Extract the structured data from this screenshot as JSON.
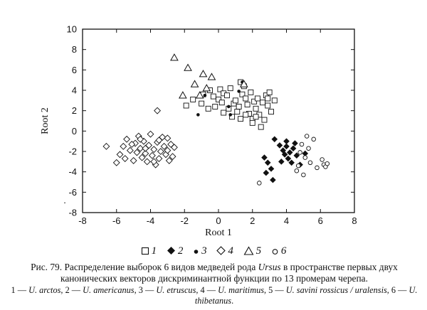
{
  "chart_data": {
    "type": "scatter",
    "title": "",
    "xlabel": "Root 1",
    "ylabel": "Root 2",
    "xlim": [
      -8,
      8
    ],
    "ylim": [
      -8,
      10
    ],
    "x_ticks": [
      -8,
      -6,
      -4,
      -2,
      0,
      2,
      4,
      6,
      8
    ],
    "y_ticks": [
      -8,
      -6,
      -4,
      -2,
      0,
      2,
      4,
      6,
      8,
      10
    ],
    "grid": false,
    "legend_position": "bottom",
    "series": [
      {
        "name": "1",
        "marker": "open-square",
        "points": [
          [
            -1.9,
            2.5
          ],
          [
            -1.5,
            3.1
          ],
          [
            -1.0,
            2.7
          ],
          [
            -0.9,
            3.6
          ],
          [
            -0.5,
            4.0
          ],
          [
            -0.6,
            2.2
          ],
          [
            -0.2,
            2.4
          ],
          [
            0.0,
            3.1
          ],
          [
            0.1,
            4.1
          ],
          [
            0.3,
            3.7
          ],
          [
            0.5,
            3.5
          ],
          [
            0.7,
            4.2
          ],
          [
            0.9,
            2.7
          ],
          [
            0.6,
            2.2
          ],
          [
            1.0,
            3.0
          ],
          [
            1.1,
            1.9
          ],
          [
            1.2,
            2.4
          ],
          [
            1.4,
            3.6
          ],
          [
            1.5,
            4.4
          ],
          [
            1.6,
            3.2
          ],
          [
            1.7,
            2.6
          ],
          [
            1.8,
            1.7
          ],
          [
            1.9,
            3.8
          ],
          [
            2.0,
            1.2
          ],
          [
            2.1,
            2.9
          ],
          [
            2.2,
            2.2
          ],
          [
            2.3,
            3.2
          ],
          [
            2.4,
            1.6
          ],
          [
            2.6,
            2.8
          ],
          [
            2.7,
            1.1
          ],
          [
            2.8,
            3.5
          ],
          [
            2.9,
            2.5
          ],
          [
            3.1,
            1.9
          ],
          [
            3.0,
            3.8
          ],
          [
            3.3,
            3.0
          ],
          [
            0.3,
            1.8
          ],
          [
            0.8,
            1.4
          ],
          [
            1.3,
            1.2
          ],
          [
            -0.3,
            3.4
          ],
          [
            1.6,
            1.6
          ],
          [
            2.5,
            0.4
          ],
          [
            2.0,
            0.8
          ],
          [
            2.2,
            1.4
          ],
          [
            2.9,
            3.2
          ],
          [
            1.3,
            4.8
          ],
          [
            0.2,
            2.8
          ]
        ]
      },
      {
        "name": "2",
        "marker": "filled-diamond",
        "points": [
          [
            3.3,
            -0.8
          ],
          [
            3.6,
            -1.4
          ],
          [
            3.8,
            -1.9
          ],
          [
            4.0,
            -1.5
          ],
          [
            4.2,
            -2.1
          ],
          [
            4.4,
            -1.7
          ],
          [
            4.6,
            -2.4
          ],
          [
            4.1,
            -2.7
          ],
          [
            3.9,
            -2.3
          ],
          [
            3.7,
            -3.0
          ],
          [
            4.3,
            -3.1
          ],
          [
            4.5,
            -1.2
          ],
          [
            4.8,
            -3.3
          ],
          [
            5.1,
            -2.2
          ],
          [
            3.1,
            -3.7
          ],
          [
            3.2,
            -4.8
          ],
          [
            2.8,
            -4.1
          ],
          [
            2.7,
            -2.6
          ],
          [
            2.9,
            -3.1
          ],
          [
            4.0,
            -1.0
          ]
        ]
      },
      {
        "name": "3",
        "marker": "filled-circle",
        "points": [
          [
            -1.2,
            1.6
          ],
          [
            -0.8,
            3.5
          ],
          [
            0.6,
            2.4
          ],
          [
            1.2,
            3.9
          ],
          [
            1.4,
            4.8
          ],
          [
            0.7,
            1.6
          ]
        ]
      },
      {
        "name": "4",
        "marker": "open-diamond",
        "points": [
          [
            -6.6,
            -1.5
          ],
          [
            -6.0,
            -3.1
          ],
          [
            -5.8,
            -2.3
          ],
          [
            -5.6,
            -1.5
          ],
          [
            -5.5,
            -2.7
          ],
          [
            -5.4,
            -0.8
          ],
          [
            -5.2,
            -1.9
          ],
          [
            -5.0,
            -2.9
          ],
          [
            -4.9,
            -1.2
          ],
          [
            -4.8,
            -2.1
          ],
          [
            -4.7,
            -0.5
          ],
          [
            -4.6,
            -1.7
          ],
          [
            -4.5,
            -2.6
          ],
          [
            -4.4,
            -1.0
          ],
          [
            -4.3,
            -2.2
          ],
          [
            -4.2,
            -3.0
          ],
          [
            -4.1,
            -1.4
          ],
          [
            -4.0,
            -0.3
          ],
          [
            -3.9,
            -2.4
          ],
          [
            -3.8,
            -1.8
          ],
          [
            -3.7,
            -3.3
          ],
          [
            -3.6,
            -1.1
          ],
          [
            -3.5,
            -2.7
          ],
          [
            -3.4,
            -2.0
          ],
          [
            -3.3,
            -0.6
          ],
          [
            -3.2,
            -1.5
          ],
          [
            -3.1,
            -2.3
          ],
          [
            -3.0,
            -1.9
          ],
          [
            -2.9,
            -2.9
          ],
          [
            -2.8,
            -1.3
          ],
          [
            -2.7,
            -2.5
          ],
          [
            -3.0,
            -0.7
          ],
          [
            -4.6,
            -0.8
          ],
          [
            -5.1,
            -1.3
          ],
          [
            -3.8,
            -3.0
          ],
          [
            -3.5,
            -0.9
          ],
          [
            -4.3,
            -1.7
          ],
          [
            -3.6,
            2.0
          ],
          [
            -2.6,
            -1.6
          ]
        ]
      },
      {
        "name": "5",
        "marker": "open-triangle",
        "points": [
          [
            -2.6,
            7.2
          ],
          [
            -1.8,
            6.2
          ],
          [
            -0.9,
            5.6
          ],
          [
            -0.4,
            5.3
          ],
          [
            -1.4,
            4.6
          ],
          [
            -0.7,
            4.2
          ],
          [
            -1.1,
            3.5
          ],
          [
            -2.1,
            3.5
          ],
          [
            1.5,
            4.6
          ]
        ]
      },
      {
        "name": "6",
        "marker": "open-circle",
        "points": [
          [
            4.9,
            -1.3
          ],
          [
            5.2,
            -0.5
          ],
          [
            5.6,
            -0.8
          ],
          [
            4.8,
            -2.1
          ],
          [
            5.1,
            -2.6
          ],
          [
            4.7,
            -3.4
          ],
          [
            5.4,
            -3.1
          ],
          [
            5.8,
            -3.6
          ],
          [
            6.1,
            -2.8
          ],
          [
            6.2,
            -3.3
          ],
          [
            6.3,
            -3.5
          ],
          [
            6.4,
            -3.2
          ],
          [
            5.0,
            -4.3
          ],
          [
            4.6,
            -3.9
          ],
          [
            2.4,
            -5.1
          ],
          [
            5.3,
            -1.7
          ]
        ]
      }
    ],
    "stray_ticks": [
      "·"
    ]
  },
  "caption": {
    "lead": "Рис. 79. Распределение выборок 6 видов медведей рода ",
    "genus": "Ursus",
    "rest": " в пространстве первых двух канонических векторов дискриминантной функции по 13 промерам черепа.",
    "species": "1 — U. arctos, 2 — U. americanus, 3 — U. etruscus, 4 — U. maritimus, 5 — U. savini rossicus / uralensis, 6 — U. thibetanus."
  }
}
